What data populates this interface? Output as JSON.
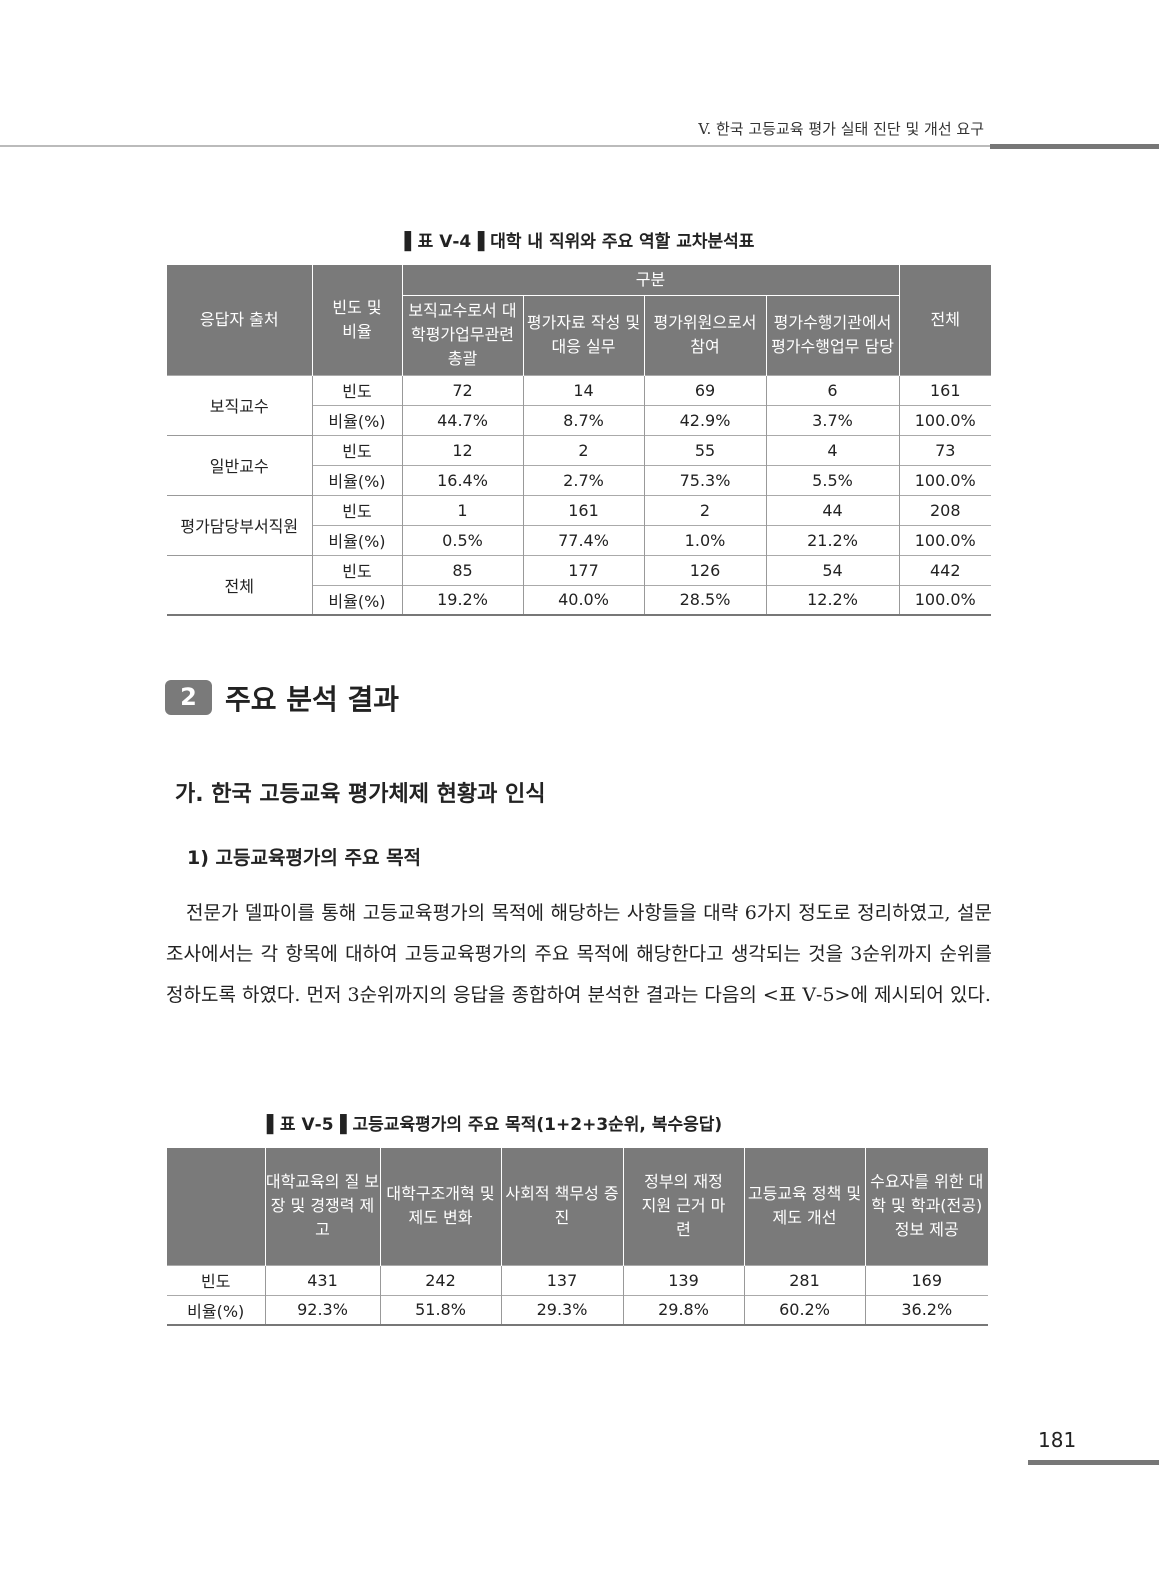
{
  "running_header": "V. 한국 고등교육 평가 실태 진단 및 개선 요구",
  "table1": {
    "caption": "▌표 Ⅴ-4▐  대학 내 직위와 주요 역할 교차분석표",
    "headers": {
      "source": "응답자 출처",
      "measure": "빈도 및 비율",
      "group": "구분",
      "cols": [
        "보직교수로서 대학평가업무관련 총괄",
        "평가자료 작성 및 대응 실무",
        "평가위원으로서 참여",
        "평가수행기관에서 평가수행업무 담당"
      ],
      "total": "전체"
    },
    "rows": [
      {
        "label": "보직교수",
        "freq_label": "빈도",
        "freq": [
          "72",
          "14",
          "69",
          "6",
          "161"
        ],
        "pct_label": "비율(%)",
        "pct": [
          "44.7%",
          "8.7%",
          "42.9%",
          "3.7%",
          "100.0%"
        ]
      },
      {
        "label": "일반교수",
        "freq_label": "빈도",
        "freq": [
          "12",
          "2",
          "55",
          "4",
          "73"
        ],
        "pct_label": "비율(%)",
        "pct": [
          "16.4%",
          "2.7%",
          "75.3%",
          "5.5%",
          "100.0%"
        ]
      },
      {
        "label": "평가담당부서직원",
        "freq_label": "빈도",
        "freq": [
          "1",
          "161",
          "2",
          "44",
          "208"
        ],
        "pct_label": "비율(%)",
        "pct": [
          "0.5%",
          "77.4%",
          "1.0%",
          "21.2%",
          "100.0%"
        ]
      },
      {
        "label": "전체",
        "freq_label": "빈도",
        "freq": [
          "85",
          "177",
          "126",
          "54",
          "442"
        ],
        "pct_label": "비율(%)",
        "pct": [
          "19.2%",
          "40.0%",
          "28.5%",
          "12.2%",
          "100.0%"
        ]
      }
    ]
  },
  "section": {
    "number": "2",
    "title": "주요 분석 결과"
  },
  "subsection": "가. 한국 고등교육 평가체제 현황과 인식",
  "subsubsection": "1) 고등교육평가의 주요 목적",
  "paragraph": "전문가 델파이를 통해 고등교육평가의 목적에 해당하는 사항들을 대략 6가지 정도로 정리하였고, 설문조사에서는 각 항목에 대하여 고등교육평가의 주요 목적에 해당한다고 생각되는 것을 3순위까지 순위를 정하도록 하였다. 먼저 3순위까지의 응답을 종합하여 분석한 결과는 다음의 <표 Ⅴ-5>에 제시되어 있다.",
  "table2": {
    "caption": "▌표 Ⅴ-5▐  고등교육평가의 주요 목적(1+2+3순위, 복수응답)",
    "headers": [
      "대학교육의 질 보장 및 경쟁력 제고",
      "대학구조개혁 및 제도 변화",
      "사회적 책무성 증진",
      "정부의 재정 지원 근거 마련",
      "고등교육 정책 및 제도 개선",
      "수요자를 위한 대학 및 학과(전공) 정보 제공"
    ],
    "freq_label": "빈도",
    "freq": [
      "431",
      "242",
      "137",
      "139",
      "281",
      "169"
    ],
    "pct_label": "비율(%)",
    "pct": [
      "92.3%",
      "51.8%",
      "29.3%",
      "29.8%",
      "60.2%",
      "36.2%"
    ]
  },
  "page_number": "181"
}
